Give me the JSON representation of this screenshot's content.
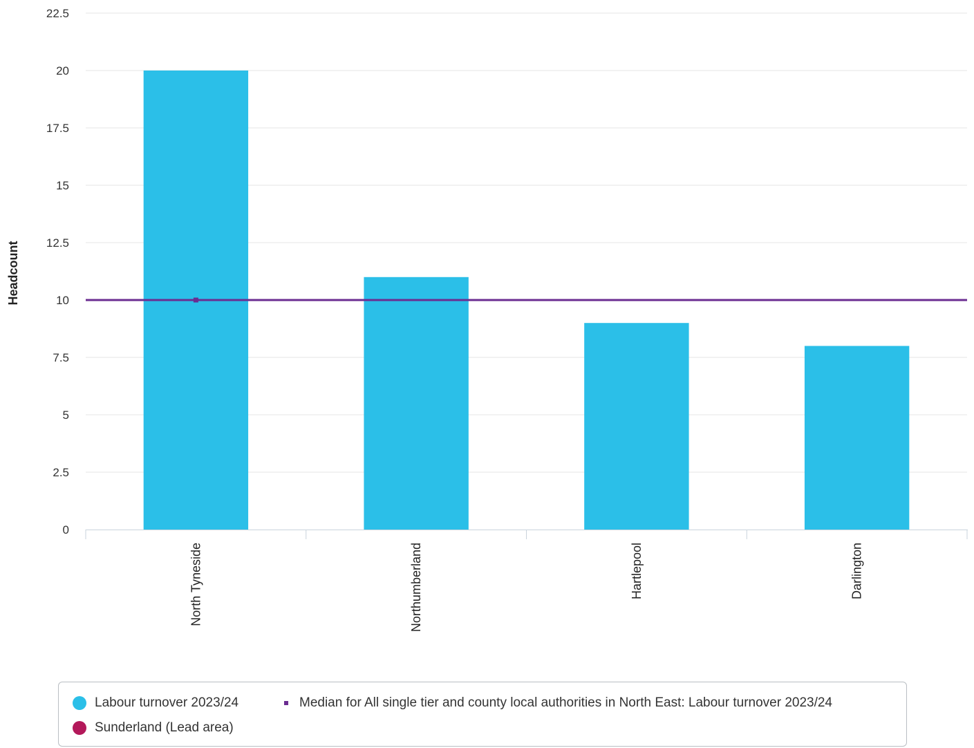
{
  "chart_data": {
    "type": "bar",
    "categories": [
      "North Tyneside",
      "Northumberland",
      "Hartlepool",
      "Darlington"
    ],
    "series": [
      {
        "name": "Labour turnover 2023/24",
        "values": [
          20,
          11,
          9,
          8
        ],
        "color": "#2bbfe8"
      }
    ],
    "reference_line": {
      "name": "Median for All single tier and county local authorities in North East: Labour turnover 2023/24",
      "value": 10,
      "color": "#6b2c91"
    },
    "highlight": {
      "name": "Sunderland (Lead area)",
      "color": "#b3185a"
    },
    "ylabel": "Headcount",
    "xlabel": "",
    "ylim": [
      0,
      22.5
    ],
    "yticks": [
      "0",
      "2.5",
      "5",
      "7.5",
      "10",
      "12.5",
      "15",
      "17.5",
      "20",
      "22.5"
    ],
    "grid": true,
    "legend_position": "bottom"
  }
}
